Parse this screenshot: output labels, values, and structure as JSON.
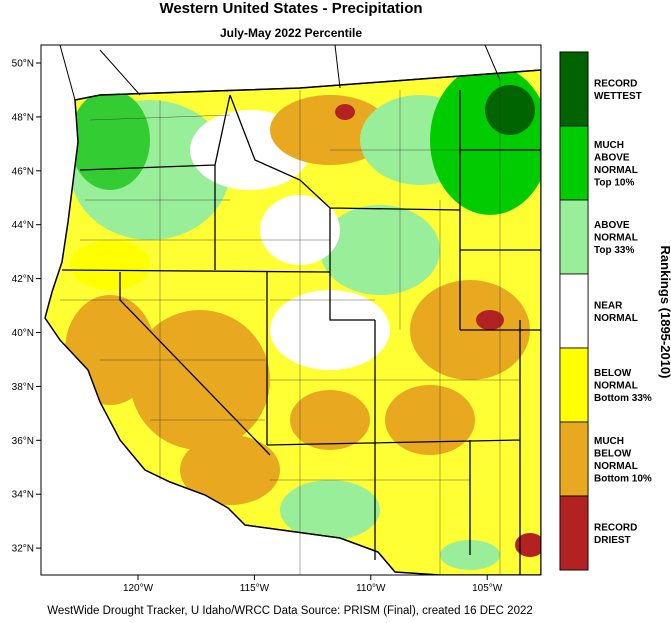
{
  "title": "Western United States - Precipitation",
  "subtitle": "July-May 2022 Percentile",
  "lat_labels": [
    "50°N",
    "48°N",
    "46°N",
    "44°N",
    "42°N",
    "40°N",
    "38°N",
    "36°N",
    "34°N",
    "32°N"
  ],
  "lon_labels": [
    "120°W",
    "115°W",
    "110°W",
    "105°W"
  ],
  "legend": {
    "title": "Rankings (1895-2010)",
    "items": [
      {
        "lines": [
          "RECORD",
          "WETTEST"
        ],
        "color": "#006400"
      },
      {
        "lines": [
          "MUCH",
          "ABOVE",
          "NORMAL",
          "Top 10%"
        ],
        "color": "#00cc00"
      },
      {
        "lines": [
          "ABOVE",
          "NORMAL",
          "Top 33%"
        ],
        "color": "#99ee99"
      },
      {
        "lines": [
          "NEAR",
          "NORMAL"
        ],
        "color": "#ffffff"
      },
      {
        "lines": [
          "BELOW",
          "NORMAL",
          "Bottom 33%"
        ],
        "color": "#ffff00"
      },
      {
        "lines": [
          "MUCH",
          "BELOW",
          "NORMAL",
          "Bottom 10%"
        ],
        "color": "#e8a820"
      },
      {
        "lines": [
          "RECORD",
          "DRIEST"
        ],
        "color": "#b22222"
      }
    ]
  },
  "footer": "WestWide Drought Tracker, U Idaho/WRCC Data Source: PRISM (Final), created 16 DEC 2022"
}
